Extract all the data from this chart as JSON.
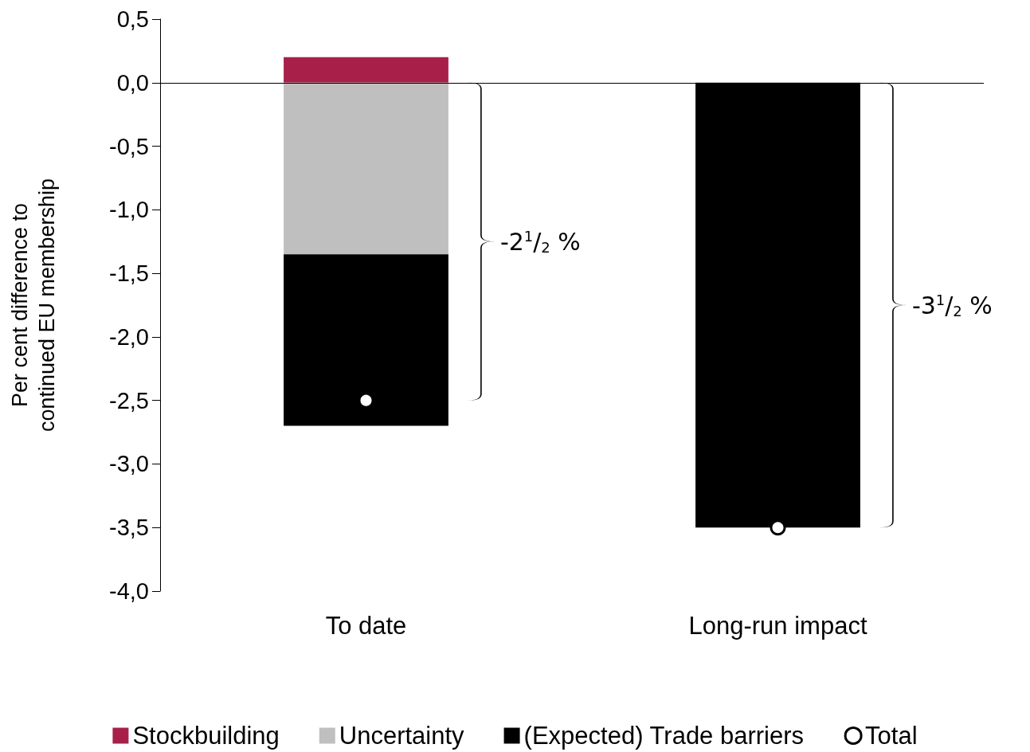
{
  "chart_data": {
    "type": "bar",
    "ylabel": "Per cent difference to\ncontinued EU membership",
    "categories": [
      "To date",
      "Long-run impact"
    ],
    "stacked": true,
    "series": [
      {
        "name": "Stockbuilding",
        "color": "#a8204a",
        "values": [
          0.2,
          null
        ]
      },
      {
        "name": "Uncertainty",
        "color": "#bfbfbf",
        "values": [
          -1.35,
          null
        ]
      },
      {
        "name": "(Expected) Trade barriers",
        "color": "#000000",
        "values": [
          -1.35,
          -3.5
        ]
      },
      {
        "name": "Total",
        "type": "scatter",
        "color": "#ffffff",
        "values": [
          -2.5,
          -3.5
        ]
      }
    ],
    "ylim": [
      -4,
      0.5
    ],
    "yticks": [
      {
        "value": -4,
        "label": "-4,0"
      },
      {
        "value": -3.5,
        "label": "-3,5"
      },
      {
        "value": -3,
        "label": "-3,0"
      },
      {
        "value": -2.5,
        "label": "-2,5"
      },
      {
        "value": -2,
        "label": "-2,0"
      },
      {
        "value": -1.5,
        "label": "-1,5"
      },
      {
        "value": -1,
        "label": "-1,0"
      },
      {
        "value": -0.5,
        "label": "-0,5"
      },
      {
        "value": 0,
        "label": "0,0"
      },
      {
        "value": 0.5,
        "label": "0,5"
      }
    ],
    "ref_lines": [
      {
        "axis": "y",
        "value": 0,
        "color": "#000000"
      }
    ],
    "legend": "bottom",
    "marker": "circle",
    "annotations": [
      "-2$^{1}$/$_{2}$ %",
      "-3$^{1}$/$_{2}$ %"
    ]
  }
}
